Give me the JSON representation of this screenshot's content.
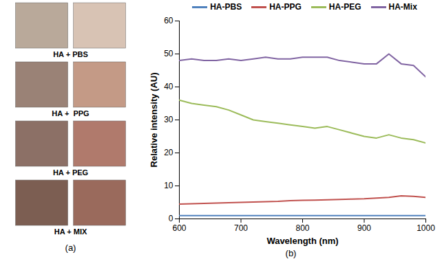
{
  "chart_data": {
    "type": "line",
    "x_label": "Wavelength (nm)",
    "y_label": "Relative intensity (AU)",
    "x": [
      600,
      620,
      640,
      660,
      680,
      700,
      720,
      740,
      760,
      780,
      800,
      820,
      840,
      860,
      880,
      900,
      920,
      940,
      960,
      980,
      1000
    ],
    "series": [
      {
        "name": "HA-PBS",
        "color": "#4f81bd",
        "values": [
          1,
          1,
          1,
          1,
          1,
          1,
          1,
          1,
          1,
          1,
          1,
          1,
          1,
          1,
          1,
          1,
          1,
          1,
          1,
          1,
          1
        ]
      },
      {
        "name": "HA-PPG",
        "color": "#c0504d",
        "values": [
          4.5,
          4.6,
          4.7,
          4.8,
          4.9,
          5.0,
          5.1,
          5.2,
          5.3,
          5.5,
          5.6,
          5.7,
          5.8,
          5.9,
          6.0,
          6.1,
          6.3,
          6.5,
          7.0,
          6.8,
          6.5
        ]
      },
      {
        "name": "HA-PEG",
        "color": "#9bbb59",
        "values": [
          36,
          35,
          34.5,
          34,
          33,
          31.5,
          30,
          29.5,
          29,
          28.5,
          28,
          27.5,
          28,
          27,
          26,
          25,
          24.5,
          25.5,
          24.5,
          24,
          23
        ]
      },
      {
        "name": "HA-Mix",
        "color": "#8064a2",
        "values": [
          48,
          48.5,
          48,
          48,
          48.5,
          48,
          48.5,
          49,
          48.5,
          48.5,
          49,
          49,
          49,
          48,
          47.5,
          47,
          47,
          50,
          47,
          46.5,
          43
        ]
      }
    ],
    "xlim": [
      600,
      1000
    ],
    "xticks": [
      600,
      700,
      800,
      900,
      1000
    ],
    "ylim": [
      0,
      60
    ],
    "yticks": [
      0,
      10,
      20,
      30,
      40,
      50,
      60
    ],
    "grid": false,
    "legend": "top"
  },
  "figure": {
    "panel_labels": [
      "(a)",
      "(b)"
    ],
    "photo_captions": [
      "HA + PBS",
      "HA +  PPG",
      "HA + PEG",
      "HA + MIX"
    ]
  }
}
